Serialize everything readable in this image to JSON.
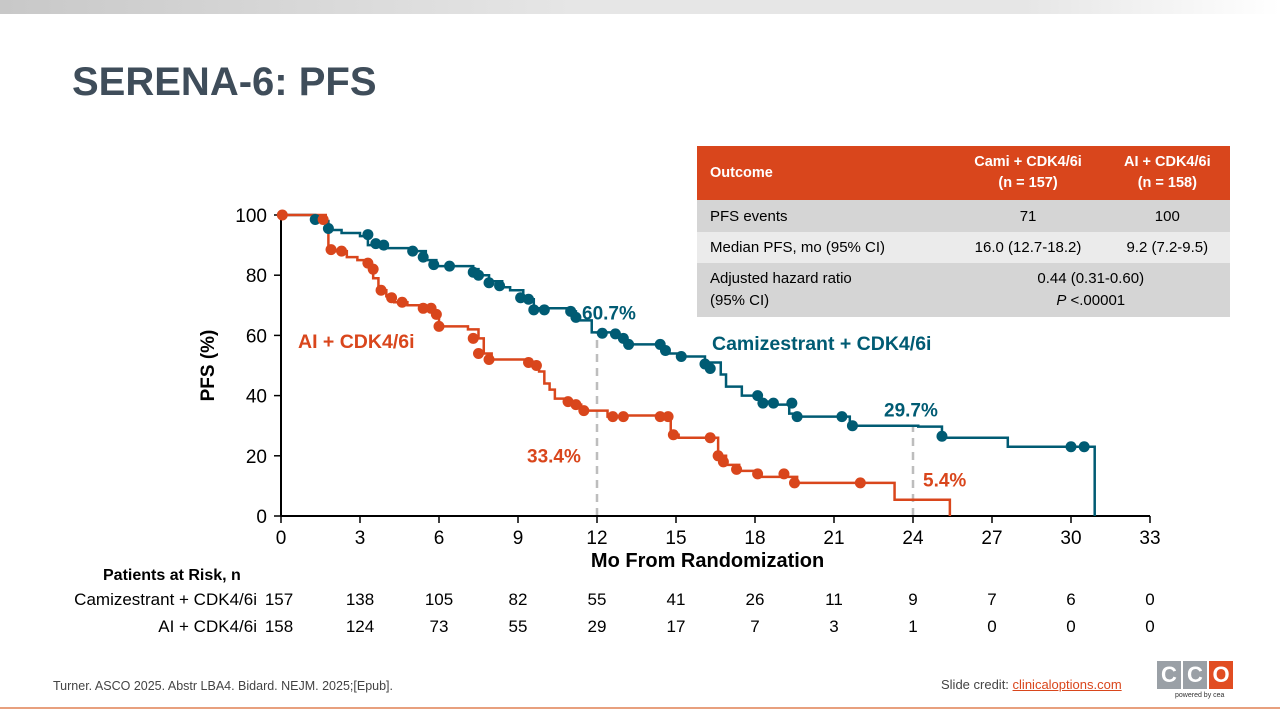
{
  "slide": {
    "title": "SERENA-6: PFS",
    "footer_reference": "Turner. ASCO 2025. Abstr LBA4. Bidard. NEJM. 2025;[Epub].",
    "credit_label": "Slide credit:",
    "credit_link": "clinicaloptions.com",
    "logo_letters": [
      "C",
      "C",
      "O"
    ],
    "logo_tagline": "powered by cea",
    "colors": {
      "title": "#3f4d5a",
      "accent_orange": "#d9461c",
      "teal": "#005b73",
      "logo_grey": "#9aa0a6"
    }
  },
  "table": {
    "headers": [
      "Outcome",
      "Cami + CDK4/6i\n(n = 157)",
      "AI + CDK4/6i\n(n = 158)"
    ],
    "rows": [
      {
        "label": "PFS events",
        "cami": "71",
        "ai": "100"
      },
      {
        "label": "Median PFS, mo (95% CI)",
        "cami": "16.0 (12.7-18.2)",
        "ai": "9.2 (7.2-9.5)"
      },
      {
        "label_line1": "Adjusted hazard ratio",
        "label_line2": "(95% CI)",
        "value_line1": "0.44 (0.31-0.60)",
        "p_label": "P",
        "p_value": " <.00001"
      }
    ]
  },
  "chart_data": {
    "type": "line",
    "xlabel": "Mo From Randomization",
    "ylabel": "PFS (%)",
    "xlim": [
      0,
      33
    ],
    "ylim": [
      0,
      100
    ],
    "xticks": [
      0,
      3,
      6,
      9,
      12,
      15,
      18,
      21,
      24,
      27,
      30,
      33
    ],
    "yticks": [
      0,
      20,
      40,
      60,
      80,
      100
    ],
    "grid": false,
    "series": [
      {
        "name": "Camizestrant + CDK4/6i",
        "color": "#005b73",
        "steps": [
          [
            0,
            100
          ],
          [
            1.3,
            98
          ],
          [
            1.8,
            95
          ],
          [
            2.3,
            94
          ],
          [
            3.0,
            93
          ],
          [
            3.3,
            90
          ],
          [
            4.0,
            89
          ],
          [
            5.0,
            88
          ],
          [
            5.5,
            85
          ],
          [
            5.9,
            83
          ],
          [
            6.7,
            83
          ],
          [
            7.3,
            82
          ],
          [
            7.5,
            80
          ],
          [
            7.9,
            78
          ],
          [
            8.4,
            76
          ],
          [
            8.7,
            75
          ],
          [
            9.2,
            72
          ],
          [
            9.6,
            69
          ],
          [
            10.9,
            68
          ],
          [
            11.2,
            65
          ],
          [
            11.8,
            61
          ],
          [
            12.7,
            60
          ],
          [
            13.1,
            57
          ],
          [
            14.1,
            57
          ],
          [
            14.5,
            54
          ],
          [
            15.1,
            53
          ],
          [
            16.1,
            51
          ],
          [
            16.7,
            47
          ],
          [
            16.9,
            43
          ],
          [
            17.5,
            40
          ],
          [
            18.2,
            38
          ],
          [
            18.7,
            37
          ],
          [
            19.3,
            34
          ],
          [
            19.5,
            33
          ],
          [
            21.6,
            30
          ],
          [
            24.2,
            29.7
          ],
          [
            25.1,
            26
          ],
          [
            27.6,
            23
          ],
          [
            30.6,
            23
          ],
          [
            30.9,
            0
          ]
        ],
        "censor": [
          [
            1.3,
            98.5
          ],
          [
            1.8,
            95.5
          ],
          [
            3.3,
            93.5
          ],
          [
            3.6,
            90.5
          ],
          [
            3.9,
            90
          ],
          [
            5.0,
            88
          ],
          [
            5.4,
            86
          ],
          [
            5.8,
            83.5
          ],
          [
            6.4,
            83
          ],
          [
            7.3,
            81
          ],
          [
            7.5,
            80
          ],
          [
            7.9,
            77.5
          ],
          [
            8.3,
            76.5
          ],
          [
            9.1,
            72.5
          ],
          [
            9.4,
            72
          ],
          [
            9.6,
            68.5
          ],
          [
            10.0,
            68.5
          ],
          [
            11.0,
            68
          ],
          [
            11.2,
            66
          ],
          [
            12.2,
            60.7
          ],
          [
            12.7,
            60.5
          ],
          [
            13.0,
            59
          ],
          [
            13.2,
            57
          ],
          [
            14.4,
            57
          ],
          [
            14.6,
            55
          ],
          [
            15.2,
            53
          ],
          [
            16.1,
            50.5
          ],
          [
            16.3,
            49
          ],
          [
            18.1,
            40
          ],
          [
            18.3,
            37.5
          ],
          [
            18.7,
            37.5
          ],
          [
            19.4,
            37.5
          ],
          [
            19.6,
            33
          ],
          [
            21.3,
            33
          ],
          [
            21.7,
            30
          ],
          [
            25.1,
            26.5
          ],
          [
            30.0,
            23
          ],
          [
            30.5,
            23
          ]
        ]
      },
      {
        "name": "AI + CDK4/6i",
        "color": "#d9461c",
        "steps": [
          [
            0,
            100
          ],
          [
            1.7,
            97
          ],
          [
            1.8,
            88
          ],
          [
            2.5,
            86
          ],
          [
            2.9,
            85
          ],
          [
            3.3,
            83
          ],
          [
            3.5,
            79
          ],
          [
            3.7,
            75
          ],
          [
            4.0,
            73
          ],
          [
            4.3,
            71
          ],
          [
            4.8,
            70
          ],
          [
            5.5,
            69
          ],
          [
            5.8,
            66
          ],
          [
            6.0,
            63
          ],
          [
            7.1,
            62
          ],
          [
            7.5,
            59
          ],
          [
            7.7,
            54
          ],
          [
            8.0,
            52
          ],
          [
            9.5,
            51
          ],
          [
            9.8,
            48
          ],
          [
            10.0,
            44
          ],
          [
            10.2,
            42
          ],
          [
            10.4,
            39
          ],
          [
            10.9,
            37
          ],
          [
            11.4,
            35
          ],
          [
            12.4,
            33
          ],
          [
            12.9,
            33.4
          ],
          [
            14.8,
            33
          ],
          [
            14.8,
            27
          ],
          [
            15.1,
            26
          ],
          [
            16.3,
            26
          ],
          [
            16.6,
            20
          ],
          [
            16.9,
            17
          ],
          [
            17.4,
            15
          ],
          [
            18.2,
            13
          ],
          [
            19.6,
            11
          ],
          [
            23.3,
            5.4
          ],
          [
            25.4,
            5.4
          ],
          [
            25.4,
            0
          ]
        ],
        "censor": [
          [
            0.05,
            100
          ],
          [
            1.6,
            98.5
          ],
          [
            1.9,
            88.5
          ],
          [
            2.3,
            88
          ],
          [
            3.3,
            84
          ],
          [
            3.5,
            82
          ],
          [
            3.8,
            75
          ],
          [
            4.2,
            72.5
          ],
          [
            4.6,
            71
          ],
          [
            5.4,
            69
          ],
          [
            5.7,
            69
          ],
          [
            5.9,
            67
          ],
          [
            6.0,
            63
          ],
          [
            7.3,
            59
          ],
          [
            7.5,
            54
          ],
          [
            7.9,
            52
          ],
          [
            9.4,
            51
          ],
          [
            9.7,
            50
          ],
          [
            10.9,
            38
          ],
          [
            11.2,
            37
          ],
          [
            11.5,
            35
          ],
          [
            12.6,
            33
          ],
          [
            13.0,
            33
          ],
          [
            14.4,
            33
          ],
          [
            14.7,
            33
          ],
          [
            14.9,
            27
          ],
          [
            16.3,
            26
          ],
          [
            16.6,
            20
          ],
          [
            16.8,
            18
          ],
          [
            17.3,
            15.5
          ],
          [
            18.1,
            14
          ],
          [
            19.1,
            14
          ],
          [
            19.5,
            11
          ],
          [
            22.0,
            11
          ]
        ]
      }
    ],
    "annotations": [
      {
        "text": "60.7%",
        "x": 12,
        "y": 60.7,
        "series": "Camizestrant + CDK4/6i"
      },
      {
        "text": "33.4%",
        "x": 12,
        "y": 33.4,
        "series": "AI + CDK4/6i"
      },
      {
        "text": "29.7%",
        "x": 24,
        "y": 29.7,
        "series": "Camizestrant + CDK4/6i"
      },
      {
        "text": "5.4%",
        "x": 24,
        "y": 5.4,
        "series": "AI + CDK4/6i"
      }
    ],
    "reference_lines_x": [
      12,
      24
    ],
    "series_labels": [
      "Camizestrant + CDK4/6i",
      "AI + CDK4/6i"
    ]
  },
  "at_risk": {
    "title": "Patients at Risk, n",
    "rows": [
      {
        "label": "Camizestrant + CDK4/6i",
        "values": [
          "157",
          "138",
          "105",
          "82",
          "55",
          "41",
          "26",
          "11",
          "9",
          "7",
          "6",
          "0"
        ]
      },
      {
        "label": "AI + CDK4/6i",
        "values": [
          "158",
          "124",
          "73",
          "55",
          "29",
          "17",
          "7",
          "3",
          "1",
          "0",
          "0",
          "0"
        ]
      }
    ]
  }
}
